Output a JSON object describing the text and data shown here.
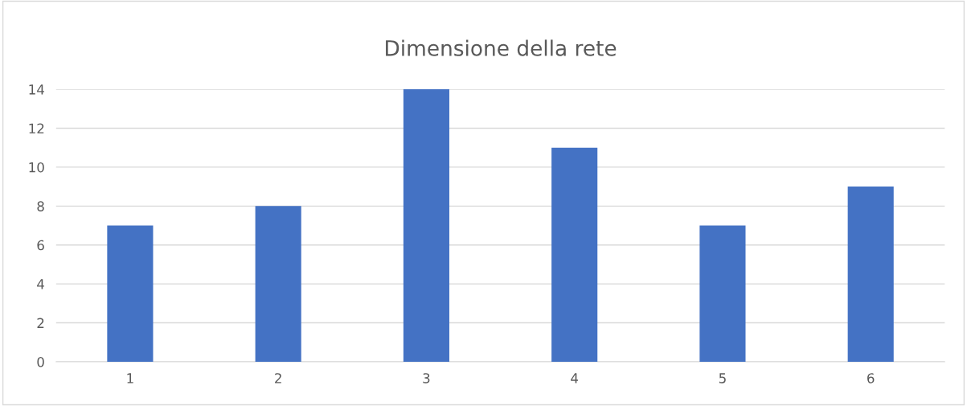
{
  "chart_data": {
    "type": "bar",
    "title": "Dimensione della rete",
    "categories": [
      "1",
      "2",
      "3",
      "4",
      "5",
      "6"
    ],
    "values": [
      7,
      8,
      14,
      11,
      7,
      9
    ],
    "color": "#4472c4",
    "ylim": [
      0,
      14
    ],
    "yticks": [
      0,
      2,
      4,
      6,
      8,
      10,
      12,
      14
    ],
    "grid": "y",
    "legend": false
  }
}
